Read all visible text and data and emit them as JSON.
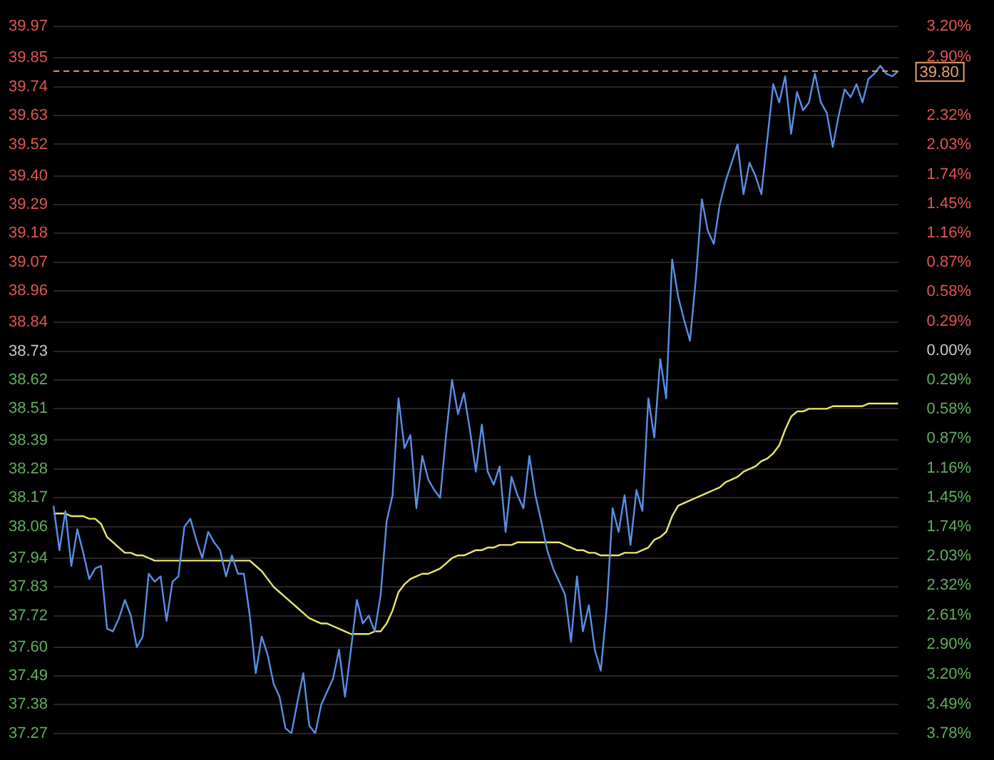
{
  "chart_data": {
    "type": "line",
    "legend": false,
    "grid": "y",
    "tick_labels": "y",
    "marker": "none",
    "categories": [
      null,
      null,
      null,
      null,
      null,
      null,
      null,
      null,
      null,
      null,
      null,
      null,
      null,
      null,
      null,
      null,
      null,
      null,
      null,
      null,
      null,
      null,
      null,
      null,
      null,
      null,
      null,
      null,
      null,
      null,
      null,
      null,
      null,
      null,
      null,
      null,
      null,
      null,
      null,
      null,
      null,
      null,
      null,
      null,
      null,
      null,
      null,
      null,
      null,
      null,
      null,
      null,
      null,
      null,
      null,
      null,
      null,
      null,
      null,
      null,
      null,
      null,
      null,
      null,
      null,
      null,
      null,
      null,
      null,
      null,
      null,
      null,
      null,
      null,
      null,
      null,
      null,
      null,
      null,
      null,
      null,
      null,
      null,
      null,
      null,
      null,
      null,
      null,
      null,
      null,
      null,
      null,
      null,
      null,
      null,
      null,
      null,
      null,
      null,
      null,
      null,
      null,
      null,
      null,
      null,
      null,
      null,
      null,
      null,
      null,
      null,
      null,
      null,
      null,
      null,
      null,
      null,
      null,
      null,
      null,
      null,
      null,
      null,
      null,
      null,
      null,
      null,
      null,
      null,
      null,
      null,
      null,
      null,
      null,
      null,
      null,
      null,
      null,
      null,
      null,
      null,
      null,
      null
    ],
    "ylim": [
      37.27,
      39.97
    ],
    "yticks": [
      37.27,
      37.38,
      37.49,
      {
        "value": 37.6,
        "label": "37.60"
      },
      37.72,
      37.83,
      37.94,
      38.06,
      38.17,
      38.28,
      38.39,
      38.51,
      38.62,
      38.73,
      38.84,
      38.96,
      39.07,
      39.18,
      39.29,
      {
        "value": 39.4,
        "label": "39.40"
      },
      39.52,
      39.63,
      39.74,
      39.85,
      39.97
    ],
    "y2lim": [
      -3.78,
      3.2
    ],
    "y2ticks": [
      {
        "value": -3.78,
        "label": "3.78%"
      },
      {
        "value": -3.49,
        "label": "3.49%"
      },
      {
        "value": -3.2,
        "label": "3.20%"
      },
      {
        "value": -2.9,
        "label": "2.90%"
      },
      {
        "value": -2.61,
        "label": "2.61%"
      },
      {
        "value": -2.32,
        "label": "2.32%"
      },
      {
        "value": -2.03,
        "label": "2.03%"
      },
      {
        "value": -1.74,
        "label": "1.74%"
      },
      {
        "value": -1.45,
        "label": "1.45%"
      },
      {
        "value": -1.16,
        "label": "1.16%"
      },
      {
        "value": -0.87,
        "label": "0.87%"
      },
      {
        "value": -0.58,
        "label": "0.58%"
      },
      {
        "value": -0.29,
        "label": "0.29%"
      },
      {
        "value": 0,
        "label": "0.00%"
      },
      {
        "value": 0.29,
        "label": "0.29%"
      },
      {
        "value": 0.58,
        "label": "0.58%"
      },
      {
        "value": 0.87,
        "label": "0.87%"
      },
      {
        "value": 1.16,
        "label": "1.16%"
      },
      {
        "value": 1.45,
        "label": "1.45%"
      },
      {
        "value": 1.74,
        "label": "1.74%"
      },
      {
        "value": 2.03,
        "label": "2.03%"
      },
      {
        "value": 2.32,
        "label": "2.32%"
      },
      {
        "value": 2.9,
        "label": "2.90%"
      },
      {
        "value": 3.2,
        "label": "3.20%"
      }
    ],
    "ref_lines": [
      {
        "axis": "y",
        "value": 39.8,
        "label": "39.80",
        "color": "#e8a070",
        "line_style": "dashed"
      }
    ],
    "series": [
      {
        "color": "#5b8ee6",
        "values": [
          38.14,
          37.97,
          38.12,
          37.91,
          38.05,
          37.96,
          37.86,
          37.9,
          37.91,
          37.67,
          37.66,
          37.71,
          37.78,
          37.72,
          37.6,
          37.64,
          37.88,
          37.85,
          37.87,
          37.7,
          37.85,
          37.87,
          38.06,
          38.09,
          38.01,
          37.94,
          38.04,
          38.0,
          37.97,
          37.87,
          37.95,
          37.88,
          37.88,
          37.72,
          37.5,
          37.64,
          37.57,
          37.46,
          37.41,
          37.29,
          37.27,
          37.39,
          37.5,
          37.3,
          37.27,
          37.38,
          37.43,
          37.48,
          37.59,
          37.41,
          37.59,
          37.78,
          37.69,
          37.72,
          37.66,
          37.8,
          38.08,
          38.18,
          38.55,
          38.36,
          38.41,
          38.13,
          38.33,
          38.24,
          38.2,
          38.17,
          38.41,
          38.62,
          38.49,
          38.57,
          38.43,
          38.27,
          38.45,
          38.27,
          38.22,
          38.29,
          38.04,
          38.25,
          38.18,
          38.13,
          38.33,
          38.18,
          38.08,
          37.97,
          37.9,
          37.85,
          37.8,
          37.62,
          37.87,
          37.66,
          37.76,
          37.59,
          37.51,
          37.75,
          38.13,
          38.04,
          38.18,
          37.99,
          38.2,
          38.12,
          38.55,
          38.4,
          38.7,
          38.55,
          39.08,
          38.94,
          38.85,
          38.77,
          39.01,
          39.31,
          39.19,
          39.14,
          39.29,
          39.38,
          39.45,
          39.52,
          39.33,
          39.45,
          39.4,
          39.33,
          39.54,
          39.75,
          39.68,
          39.78,
          39.56,
          39.72,
          39.65,
          39.68,
          39.79,
          39.68,
          39.64,
          39.51,
          39.63,
          39.73,
          39.7,
          39.75,
          39.68,
          39.77,
          39.79,
          39.82,
          39.79,
          39.78,
          39.8
        ]
      },
      {
        "color": "#e8e86a",
        "values": [
          38.11,
          38.11,
          38.11,
          38.1,
          38.1,
          38.1,
          38.09,
          38.09,
          38.07,
          38.02,
          38.0,
          37.98,
          37.96,
          37.96,
          37.95,
          37.95,
          37.94,
          37.93,
          37.93,
          37.93,
          37.93,
          37.93,
          37.93,
          37.93,
          37.93,
          37.93,
          37.93,
          37.93,
          37.93,
          37.93,
          37.93,
          37.93,
          37.93,
          37.93,
          37.91,
          37.89,
          37.86,
          37.83,
          37.81,
          37.79,
          37.77,
          37.75,
          37.73,
          37.71,
          37.7,
          37.69,
          37.69,
          37.68,
          37.67,
          37.66,
          37.65,
          37.65,
          37.65,
          37.65,
          37.66,
          37.66,
          37.69,
          37.74,
          37.81,
          37.84,
          37.86,
          37.87,
          37.88,
          37.88,
          37.89,
          37.9,
          37.92,
          37.94,
          37.95,
          37.95,
          37.96,
          37.97,
          37.97,
          37.98,
          37.98,
          37.99,
          37.99,
          37.99,
          38.0,
          38.0,
          38.0,
          38.0,
          38.0,
          38.0,
          38.0,
          38.0,
          37.99,
          37.98,
          37.97,
          37.97,
          37.96,
          37.96,
          37.95,
          37.95,
          37.95,
          37.95,
          37.96,
          37.96,
          37.96,
          37.97,
          37.98,
          38.01,
          38.02,
          38.04,
          38.1,
          38.14,
          38.15,
          38.16,
          38.17,
          38.18,
          38.19,
          38.2,
          38.21,
          38.23,
          38.24,
          38.25,
          38.27,
          38.28,
          38.29,
          38.31,
          38.32,
          38.34,
          38.37,
          38.43,
          38.48,
          38.5,
          38.5,
          38.51,
          38.51,
          38.51,
          38.51,
          38.52,
          38.52,
          38.52,
          38.52,
          38.52,
          38.52,
          38.53,
          38.53,
          38.53,
          38.53,
          38.53,
          38.53
        ]
      }
    ]
  }
}
